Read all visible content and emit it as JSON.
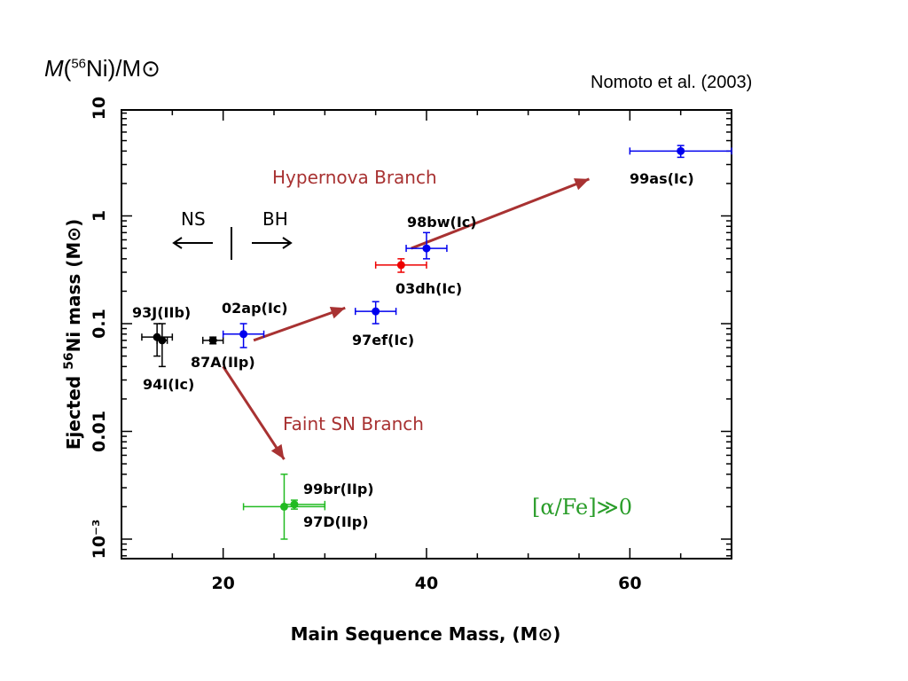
{
  "slide": {
    "title_italic": "M",
    "title_open": "(",
    "title_sup": "56",
    "title_rest": "Ni)/M",
    "title_sun": "⊙",
    "citation": "Nomoto et al. (2003)",
    "note_open": "[",
    "note_alpha": "α",
    "note_rest": "/Fe]≫0"
  },
  "chart_data": {
    "type": "scatter",
    "xlabel": "Main Sequence Mass, (M⊙)",
    "ylabel_parts": [
      "Ejected ",
      "56",
      "Ni mass (M⊙)"
    ],
    "xlim": [
      10,
      70
    ],
    "ylim": [
      0.0005,
      10
    ],
    "yscale": "log",
    "x_ticks": [
      20,
      40,
      60
    ],
    "y_ticks": [
      {
        "value": 10,
        "label": "10"
      },
      {
        "value": 1,
        "label": "1"
      },
      {
        "value": 0.1,
        "label": "0.1"
      },
      {
        "value": 0.01,
        "label": "0.01"
      },
      {
        "value": 0.001,
        "label": "10⁻³"
      }
    ],
    "points": [
      {
        "name": "93J(IIb)",
        "x": 13.5,
        "y": 0.075,
        "xerr": [
          1.5,
          1.5
        ],
        "y_lo": 0.05,
        "y_hi": 0.1,
        "color": "#000000"
      },
      {
        "name": "94I(Ic)",
        "x": 14,
        "y": 0.07,
        "xerr": [
          0.5,
          0.5
        ],
        "y_lo": 0.04,
        "y_hi": 0.1,
        "color": "#000000"
      },
      {
        "name": "87A(IIp)",
        "x": 19,
        "y": 0.07,
        "xerr": [
          1,
          1
        ],
        "y_lo": 0.065,
        "y_hi": 0.075,
        "color": "#000000"
      },
      {
        "name": "02ap(Ic)",
        "x": 22,
        "y": 0.08,
        "xerr": [
          2,
          2
        ],
        "y_lo": 0.06,
        "y_hi": 0.1,
        "color": "#0000ee"
      },
      {
        "name": "97ef(Ic)",
        "x": 35,
        "y": 0.13,
        "xerr": [
          2,
          2
        ],
        "y_lo": 0.1,
        "y_hi": 0.16,
        "color": "#0000ee"
      },
      {
        "name": "03dh(Ic)",
        "x": 37.5,
        "y": 0.35,
        "xerr": [
          2.5,
          2.5
        ],
        "y_lo": 0.3,
        "y_hi": 0.4,
        "color": "#ee0000"
      },
      {
        "name": "98bw(Ic)",
        "x": 40,
        "y": 0.5,
        "xerr": [
          2,
          2
        ],
        "y_lo": 0.4,
        "y_hi": 0.7,
        "color": "#0000ee"
      },
      {
        "name": "99as(Ic)",
        "x": 65,
        "y": 4,
        "xerr": [
          5,
          5
        ],
        "y_lo": 3.5,
        "y_hi": 4.5,
        "color": "#0000ee"
      },
      {
        "name": "99br(IIp)",
        "x": 26,
        "y": 0.002,
        "xerr": [
          4,
          4
        ],
        "y_lo": 0.001,
        "y_hi": 0.004,
        "color": "#22bb22"
      },
      {
        "name": "97D(IIp)",
        "x": 27,
        "y": 0.0021,
        "xerr": [
          1,
          3
        ],
        "y_lo": 0.0019,
        "y_hi": 0.0023,
        "color": "#22bb22"
      }
    ],
    "point_labels": [
      {
        "text": "93J(IIb)",
        "color": "#000000"
      },
      {
        "text": "94I(Ic)",
        "color": "#000000"
      },
      {
        "text": "87A(IIp)",
        "color": "#000000"
      },
      {
        "text": "02ap(Ic)",
        "color": "#0000ee"
      },
      {
        "text": "97ef(Ic)",
        "color": "#0000ee"
      },
      {
        "text": "03dh(Ic)",
        "color": "#ee0000"
      },
      {
        "text": "98bw(Ic)",
        "color": "#0000ee"
      },
      {
        "text": "99as(Ic)",
        "color": "#0000ee"
      },
      {
        "text": "99br(IIp)",
        "color": "#22bb22"
      },
      {
        "text": "97D(IIp)",
        "color": "#22bb22"
      }
    ],
    "annotations": {
      "hypernova": "Hypernova Branch",
      "faint": "Faint SN Branch",
      "ns": "NS",
      "bh": "BH"
    },
    "arrows": [
      {
        "from": [
          23,
          0.07
        ],
        "to": [
          32,
          0.14
        ]
      },
      {
        "from": [
          38.5,
          0.5
        ],
        "to": [
          56,
          2.2
        ]
      },
      {
        "from": [
          20,
          0.04
        ],
        "to": [
          26,
          0.0055
        ]
      }
    ],
    "arrow_color": "#a83232",
    "grid": false
  }
}
